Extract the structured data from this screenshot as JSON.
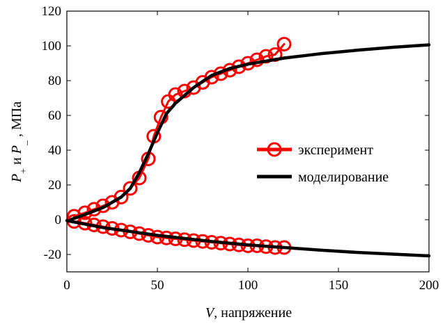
{
  "chart_data": {
    "type": "line",
    "title": "",
    "xlabel_var": "V",
    "xlabel_rest": ", напряжение",
    "ylabel": {
      "p1": "P",
      "sub1": "+",
      "mid": " и ",
      "p2": "P",
      "sub2": "_",
      "rest": " , МПа"
    },
    "xlim": [
      0,
      200
    ],
    "ylim": [
      -30,
      120
    ],
    "xticks": [
      0,
      50,
      100,
      150,
      200
    ],
    "yticks": [
      -20,
      0,
      20,
      40,
      60,
      80,
      100,
      120
    ],
    "grid": false,
    "legend_position": "center-right",
    "series": [
      {
        "name": "эксперимент",
        "style": "line-with-circle-markers",
        "color": "#ff0000",
        "branches": [
          {
            "x": [
              4,
              10,
              15,
              20,
              25,
              30,
              35,
              40,
              45,
              48,
              52,
              56,
              60,
              65,
              70,
              75,
              80,
              85,
              90,
              95,
              100,
              105,
              110,
              115,
              120
            ],
            "y": [
              2,
              4,
              6,
              8,
              10,
              13,
              18,
              24,
              35,
              48,
              59,
              68,
              72,
              74,
              76,
              79,
              82,
              84,
              86,
              88,
              90,
              92,
              94,
              95,
              101
            ]
          },
          {
            "x": [
              4,
              10,
              15,
              20,
              25,
              30,
              35,
              40,
              45,
              50,
              55,
              60,
              65,
              70,
              75,
              80,
              85,
              90,
              95,
              100,
              105,
              110,
              115,
              120
            ],
            "y": [
              -1,
              -2,
              -3,
              -4,
              -5,
              -6,
              -7,
              -8,
              -9,
              -10,
              -10.5,
              -11,
              -11.5,
              -12,
              -12.5,
              -13,
              -13.5,
              -14,
              -14.5,
              -15,
              -15,
              -15.5,
              -16,
              -16
            ]
          }
        ]
      },
      {
        "name": "моделирование",
        "style": "line",
        "color": "#000000",
        "branches": [
          {
            "x": [
              2,
              10,
              20,
              30,
              35,
              40,
              45,
              50,
              55,
              60,
              70,
              80,
              90,
              100,
              120,
              140,
              160,
              180,
              200
            ],
            "y": [
              0,
              3,
              7,
              13,
              18,
              27,
              38,
              50,
              61,
              67,
              76,
              83,
              87,
              89.5,
              93,
              95.5,
              97.5,
              99.2,
              100.6
            ]
          },
          {
            "x": [
              0,
              10,
              20,
              30,
              40,
              50,
              60,
              80,
              100,
              120,
              140,
              160,
              180,
              200
            ],
            "y": [
              -0.5,
              -2.5,
              -4.5,
              -6,
              -7.5,
              -9,
              -10.2,
              -12.5,
              -14.5,
              -16,
              -17.5,
              -18.8,
              -19.8,
              -20.8
            ]
          }
        ]
      }
    ]
  }
}
